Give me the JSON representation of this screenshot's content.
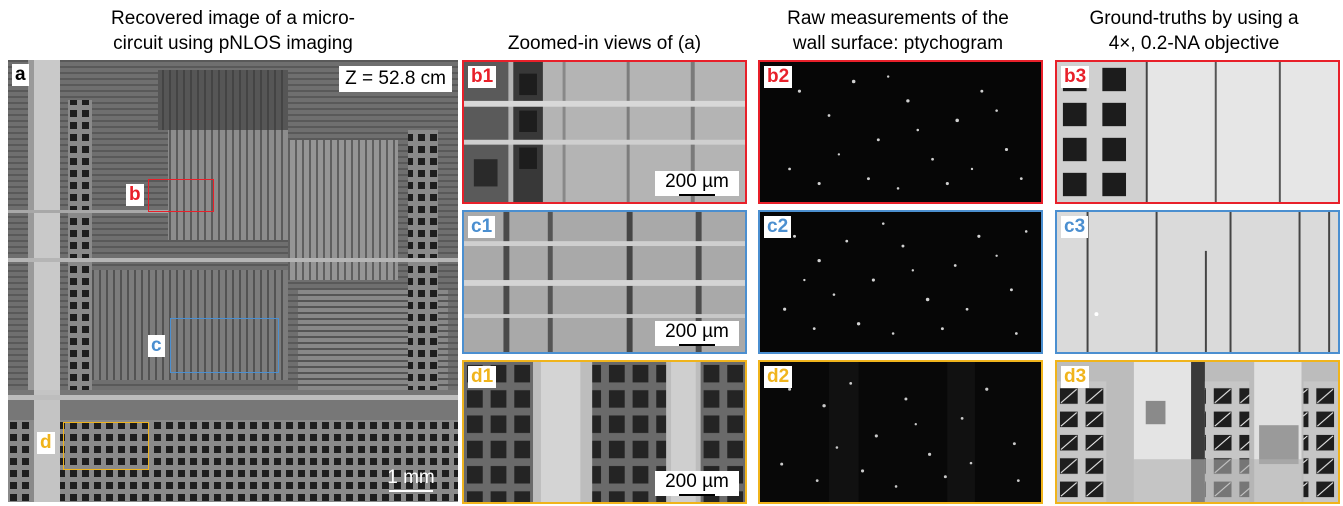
{
  "titles": {
    "a": "Recovered image of a micro-\ncircuit using pNLOS imaging",
    "zoom": "Zoomed-in views of (a)",
    "raw": "Raw measurements of the\nwall surface: ptychogram",
    "truth": "Ground-truths by using a\n4×, 0.2-NA objective"
  },
  "main_panel": {
    "tag": "a",
    "distance": "Z = 52.8 cm",
    "scale": "1 mm",
    "rois": [
      {
        "label": "b",
        "color": "#e8202a"
      },
      {
        "label": "c",
        "color": "#4b8fd0"
      },
      {
        "label": "d",
        "color": "#f0b41c"
      }
    ]
  },
  "rows": [
    {
      "color": "#e8202a",
      "zoom_tag": "b1",
      "raw_tag": "b2",
      "truth_tag": "b3",
      "scale": "200 µm"
    },
    {
      "color": "#4b8fd0",
      "zoom_tag": "c1",
      "raw_tag": "c2",
      "truth_tag": "c3",
      "scale": "200 µm"
    },
    {
      "color": "#f0b41c",
      "zoom_tag": "d1",
      "raw_tag": "d2",
      "truth_tag": "d3",
      "scale": "200 µm"
    }
  ]
}
